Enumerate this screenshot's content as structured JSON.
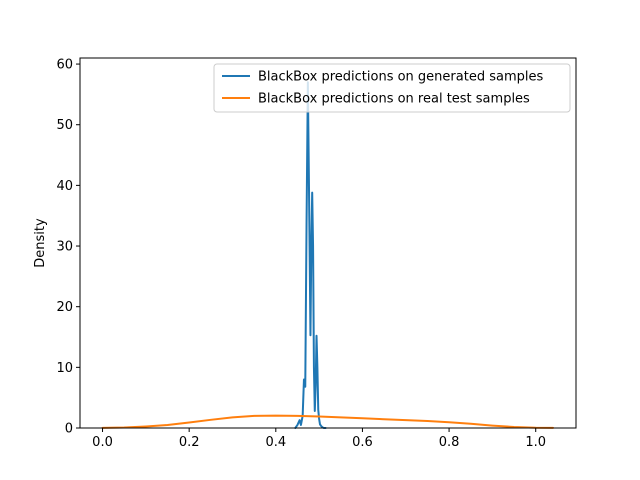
{
  "chart_data": {
    "type": "line",
    "title": "",
    "xlabel": "",
    "ylabel": "Density",
    "xlim": [
      -0.052,
      1.093
    ],
    "ylim": [
      0,
      61
    ],
    "xticks": [
      0.0,
      0.2,
      0.4,
      0.6,
      0.8,
      1.0
    ],
    "xtick_labels": [
      "0.0",
      "0.2",
      "0.4",
      "0.6",
      "0.8",
      "1.0"
    ],
    "yticks": [
      0,
      10,
      20,
      30,
      40,
      50,
      60
    ],
    "ytick_labels": [
      "0",
      "10",
      "20",
      "30",
      "40",
      "50",
      "60"
    ],
    "grid": false,
    "legend_position": "top-right",
    "series": [
      {
        "name": "BlackBox predictions on generated samples",
        "color": "#1f77b4",
        "x": [
          0.445,
          0.45,
          0.455,
          0.458,
          0.462,
          0.465,
          0.468,
          0.471,
          0.474,
          0.477,
          0.48,
          0.482,
          0.484,
          0.486,
          0.488,
          0.49,
          0.492,
          0.494,
          0.496,
          0.498,
          0.5,
          0.502,
          0.505,
          0.508,
          0.511,
          0.515
        ],
        "y": [
          0.0,
          0.5,
          1.3,
          0.5,
          2.0,
          8.0,
          6.8,
          34.0,
          57.0,
          37.0,
          15.3,
          30.0,
          38.8,
          30.0,
          10.0,
          2.8,
          7.0,
          15.2,
          10.0,
          3.0,
          1.5,
          0.6,
          0.3,
          0.1,
          0.0,
          0.0
        ]
      },
      {
        "name": "BlackBox predictions on real test samples",
        "color": "#ff7f0e",
        "x": [
          0.0,
          0.05,
          0.1,
          0.15,
          0.2,
          0.25,
          0.3,
          0.35,
          0.4,
          0.45,
          0.5,
          0.55,
          0.6,
          0.65,
          0.7,
          0.75,
          0.8,
          0.85,
          0.9,
          0.95,
          1.0,
          1.04
        ],
        "y": [
          0.02,
          0.08,
          0.25,
          0.5,
          0.9,
          1.35,
          1.75,
          2.0,
          2.05,
          2.0,
          1.9,
          1.75,
          1.6,
          1.45,
          1.3,
          1.15,
          0.95,
          0.7,
          0.4,
          0.17,
          0.05,
          0.02
        ]
      }
    ]
  }
}
